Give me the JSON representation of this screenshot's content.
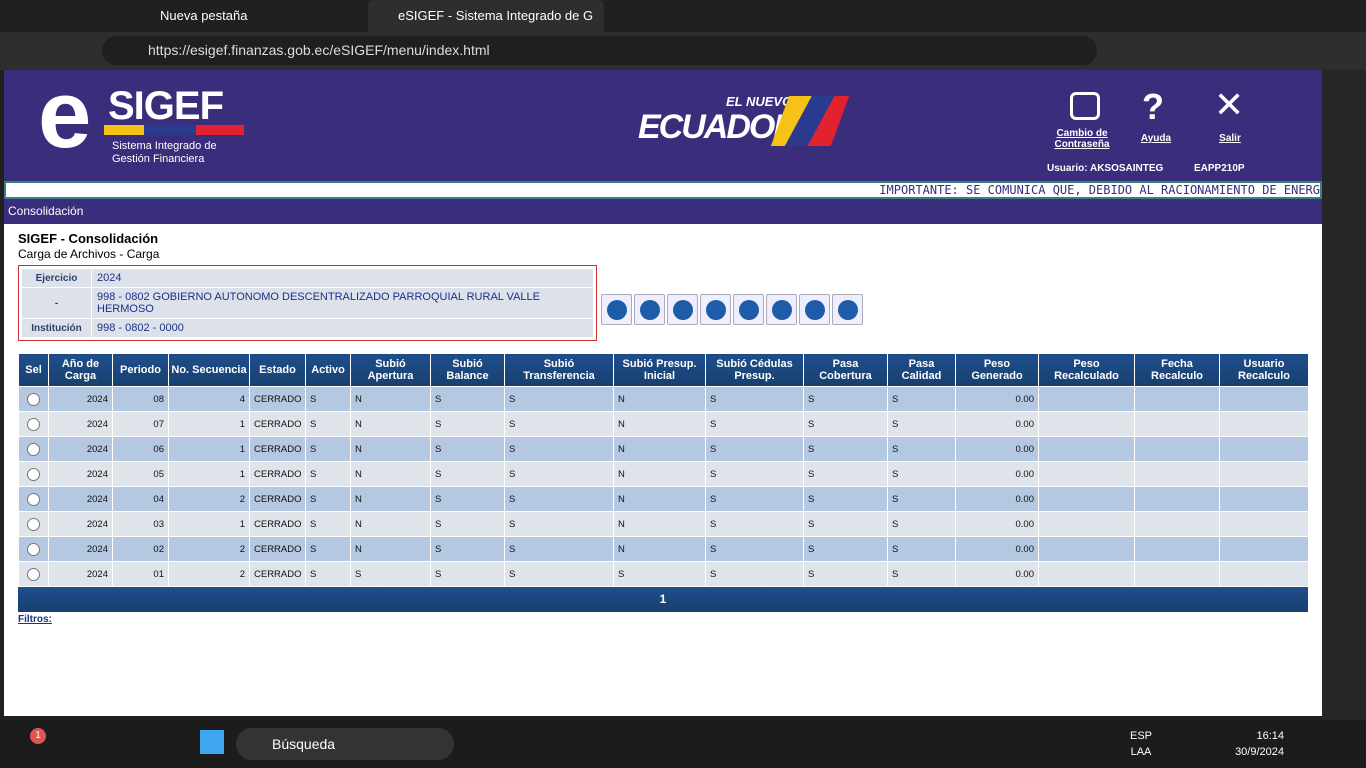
{
  "browser": {
    "tabs": [
      "Nueva pestaña",
      "eSIGEF - Sistema Integrado de G"
    ],
    "url": "https://esigef.finanzas.gob.ec/eSIGEF/menu/index.html"
  },
  "header": {
    "logo_e": "e",
    "logo_name": "SIGEF",
    "logo_line1": "Sistema Integrado de",
    "logo_line2": "Gestión Financiera",
    "brand_top": "EL NUEVO",
    "brand_main": "ECUADOR",
    "links": [
      "Cambio de Contraseña",
      "Ayuda",
      "Salir"
    ],
    "user": "Usuario: AKSOSAINTEG",
    "server": "EAPP210P"
  },
  "marquee": "IMPORTANTE: SE COMUNICA QUE, DEBIDO AL RACIONAMIENTO DE ENERG",
  "breadcrumb": "Consolidación",
  "page": {
    "title": "SIGEF - Consolidación",
    "subtitle": "Carga de Archivos - Carga"
  },
  "info": {
    "rows": [
      [
        "Ejercicio",
        "2024"
      ],
      [
        "-",
        "998 - 0802 GOBIERNO AUTONOMO DESCENTRALIZADO PARROQUIAL RURAL VALLE HERMOSO"
      ],
      [
        "Institución",
        "998 - 0802 - 0000"
      ]
    ]
  },
  "table": {
    "headers": [
      "Sel",
      "Año de Carga",
      "Periodo",
      "No. Secuencia",
      "Estado",
      "Activo",
      "Subió Apertura",
      "Subió Balance",
      "Subió Transferencia",
      "Subió Presup. Inicial",
      "Subió Cédulas Presup.",
      "Pasa Cobertura",
      "Pasa Calidad",
      "Peso Generado",
      "Peso Recalculado",
      "Fecha Recalculo",
      "Usuario Recalculo"
    ],
    "rows": [
      [
        "2024",
        "08",
        "4",
        "CERRADO",
        "S",
        "N",
        "S",
        "S",
        "N",
        "S",
        "S",
        "S",
        "0.00"
      ],
      [
        "2024",
        "07",
        "1",
        "CERRADO",
        "S",
        "N",
        "S",
        "S",
        "N",
        "S",
        "S",
        "S",
        "0.00"
      ],
      [
        "2024",
        "06",
        "1",
        "CERRADO",
        "S",
        "N",
        "S",
        "S",
        "N",
        "S",
        "S",
        "S",
        "0.00"
      ],
      [
        "2024",
        "05",
        "1",
        "CERRADO",
        "S",
        "N",
        "S",
        "S",
        "N",
        "S",
        "S",
        "S",
        "0.00"
      ],
      [
        "2024",
        "04",
        "2",
        "CERRADO",
        "S",
        "N",
        "S",
        "S",
        "N",
        "S",
        "S",
        "S",
        "0.00"
      ],
      [
        "2024",
        "03",
        "1",
        "CERRADO",
        "S",
        "N",
        "S",
        "S",
        "N",
        "S",
        "S",
        "S",
        "0.00"
      ],
      [
        "2024",
        "02",
        "2",
        "CERRADO",
        "S",
        "N",
        "S",
        "S",
        "N",
        "S",
        "S",
        "S",
        "0.00"
      ],
      [
        "2024",
        "01",
        "2",
        "CERRADO",
        "S",
        "S",
        "S",
        "S",
        "S",
        "S",
        "S",
        "S",
        "0.00"
      ]
    ],
    "pager": "1",
    "filters": "Filtros:"
  },
  "taskbar": {
    "badge": "1",
    "search": "Búsqueda",
    "lang": "ESP",
    "layout": "LAA",
    "time": "16:14",
    "date": "30/9/2024"
  }
}
